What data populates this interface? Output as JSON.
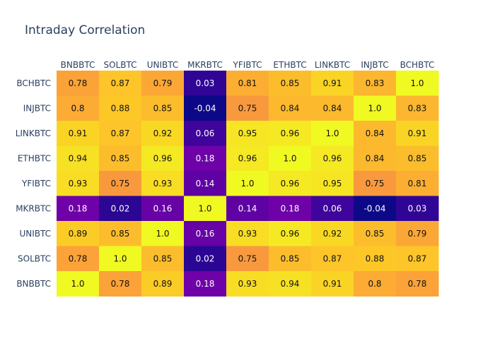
{
  "chart_data": {
    "type": "heatmap",
    "title": "Intraday Correlation",
    "x": [
      "BNBBTC",
      "SOLBTC",
      "UNIBTC",
      "MKRBTC",
      "YFIBTC",
      "ETHBTC",
      "LINKBTC",
      "INJBTC",
      "BCHBTC"
    ],
    "y": [
      "BCHBTC",
      "INJBTC",
      "LINKBTC",
      "ETHBTC",
      "YFIBTC",
      "MKRBTC",
      "UNIBTC",
      "SOLBTC",
      "BNBBTC"
    ],
    "z": [
      [
        "0.78",
        "0.87",
        "0.79",
        "0.03",
        "0.81",
        "0.85",
        "0.91",
        "0.83",
        "1.0"
      ],
      [
        "0.8",
        "0.88",
        "0.85",
        "-0.04",
        "0.75",
        "0.84",
        "0.84",
        "1.0",
        "0.83"
      ],
      [
        "0.91",
        "0.87",
        "0.92",
        "0.06",
        "0.95",
        "0.96",
        "1.0",
        "0.84",
        "0.91"
      ],
      [
        "0.94",
        "0.85",
        "0.96",
        "0.18",
        "0.96",
        "1.0",
        "0.96",
        "0.84",
        "0.85"
      ],
      [
        "0.93",
        "0.75",
        "0.93",
        "0.14",
        "1.0",
        "0.96",
        "0.95",
        "0.75",
        "0.81"
      ],
      [
        "0.18",
        "0.02",
        "0.16",
        "1.0",
        "0.14",
        "0.18",
        "0.06",
        "-0.04",
        "0.03"
      ],
      [
        "0.89",
        "0.85",
        "1.0",
        "0.16",
        "0.93",
        "0.96",
        "0.92",
        "0.85",
        "0.79"
      ],
      [
        "0.78",
        "1.0",
        "0.85",
        "0.02",
        "0.75",
        "0.85",
        "0.87",
        "0.88",
        "0.87"
      ],
      [
        "1.0",
        "0.78",
        "0.89",
        "0.18",
        "0.93",
        "0.94",
        "0.91",
        "0.8",
        "0.78"
      ]
    ],
    "zrange": [
      -0.04,
      1.0
    ],
    "colorscale": [
      "#0d0887",
      "#46039f",
      "#7201a8",
      "#9c179e",
      "#bd3786",
      "#d8576b",
      "#ed7953",
      "#fb9f3a",
      "#fdca26",
      "#f0f921"
    ]
  }
}
